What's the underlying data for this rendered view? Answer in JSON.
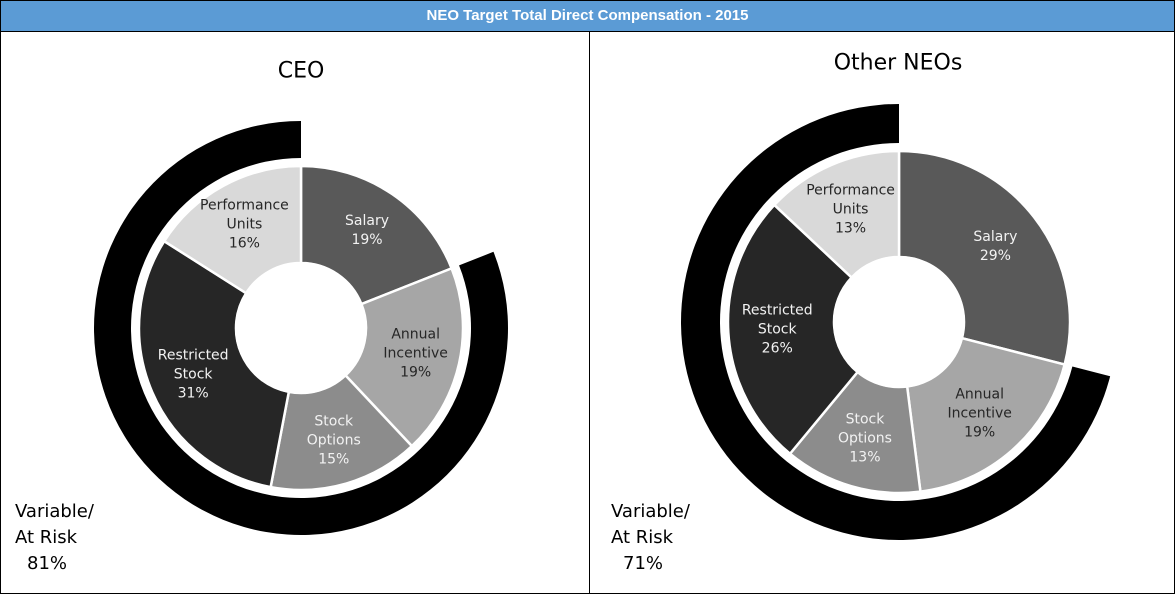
{
  "header": {
    "title": "NEO Target Total Direct Compensation - 2015"
  },
  "chart_data": [
    {
      "type": "donut",
      "title": "CEO",
      "categories": [
        "Salary",
        "Annual Incentive",
        "Stock Options",
        "Restricted Stock",
        "Performance Units"
      ],
      "values": [
        19,
        19,
        15,
        31,
        16
      ],
      "value_labels": [
        "19%",
        "19%",
        "15%",
        "31%",
        "16%"
      ],
      "colors": [
        "#595959",
        "#a6a6a6",
        "#8c8c8c",
        "#262626",
        "#d9d9d9"
      ],
      "outer_ring": {
        "name": "Variable/ At Risk",
        "value": 81,
        "value_label": "81%",
        "color": "#000000"
      }
    },
    {
      "type": "donut",
      "title": "Other NEOs",
      "categories": [
        "Salary",
        "Annual Incentive",
        "Stock Options",
        "Restricted Stock",
        "Performance Units"
      ],
      "values": [
        29,
        19,
        13,
        26,
        13
      ],
      "value_labels": [
        "29%",
        "19%",
        "13%",
        "26%",
        "13%"
      ],
      "colors": [
        "#595959",
        "#a6a6a6",
        "#8c8c8c",
        "#262626",
        "#d9d9d9"
      ],
      "outer_ring": {
        "name": "Variable/ At Risk",
        "value": 71,
        "value_label": "71%",
        "color": "#000000"
      }
    }
  ]
}
